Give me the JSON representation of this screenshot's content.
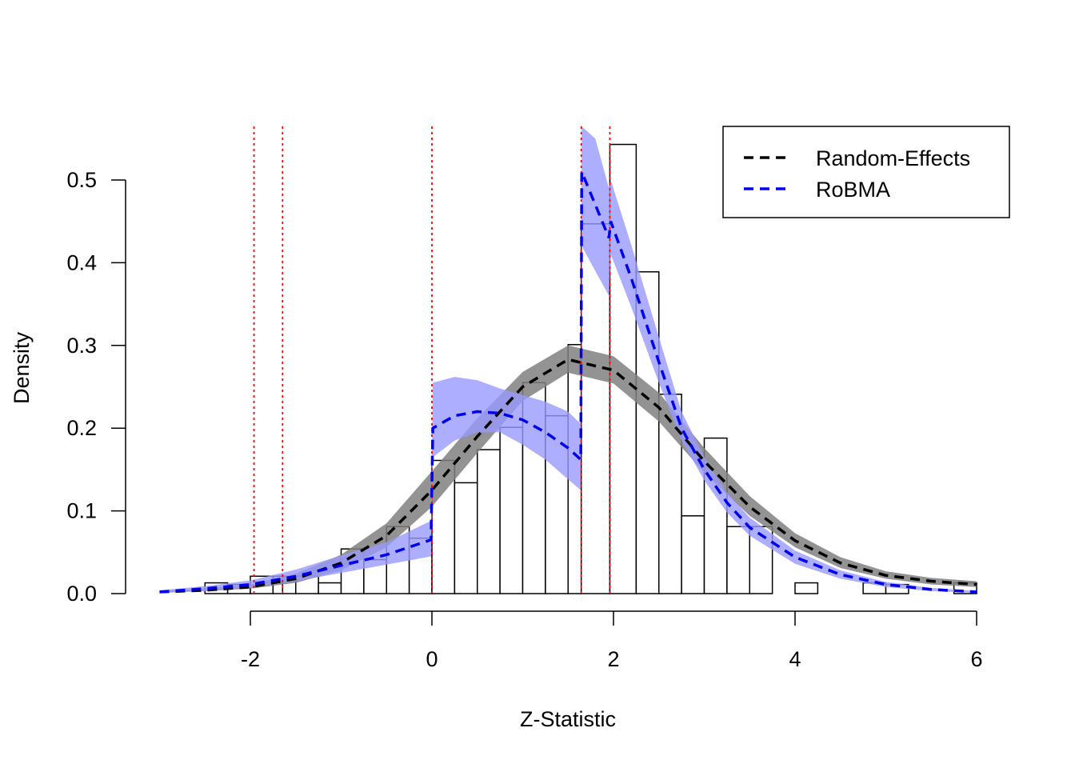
{
  "chart_data": {
    "type": "histogram",
    "xlabel": "Z-Statistic",
    "ylabel": "Density",
    "xlim": [
      -3,
      6
    ],
    "ylim": [
      0,
      0.55
    ],
    "x_ticks": [
      -2,
      0,
      2,
      4,
      6
    ],
    "x_tick_labels": [
      "-2",
      "0",
      "2",
      "4",
      "6"
    ],
    "y_ticks": [
      0.0,
      0.1,
      0.2,
      0.3,
      0.4,
      0.5
    ],
    "y_tick_labels": [
      "0.0",
      "0.1",
      "0.2",
      "0.3",
      "0.4",
      "0.5"
    ],
    "grid": false,
    "legend_position": "top-right",
    "histogram": {
      "bins": [
        {
          "x0": -2.5,
          "x1": -2.25,
          "density": 0.013
        },
        {
          "x0": -2.25,
          "x1": -2.0,
          "density": 0.011
        },
        {
          "x0": -2.0,
          "x1": -1.75,
          "density": 0.021
        },
        {
          "x0": -1.75,
          "x1": -1.645,
          "density": 0.021
        },
        {
          "x0": -1.645,
          "x1": -1.5,
          "density": 0.021
        },
        {
          "x0": -1.5,
          "x1": -1.25,
          "density": 0.021
        },
        {
          "x0": -1.25,
          "x1": -1.0,
          "density": 0.013
        },
        {
          "x0": -1.0,
          "x1": -0.75,
          "density": 0.054
        },
        {
          "x0": -0.75,
          "x1": -0.5,
          "density": 0.041
        },
        {
          "x0": -0.5,
          "x1": -0.25,
          "density": 0.081
        },
        {
          "x0": -0.25,
          "x1": 0.0,
          "density": 0.067
        },
        {
          "x0": 0.0,
          "x1": 0.25,
          "density": 0.161
        },
        {
          "x0": 0.25,
          "x1": 0.5,
          "density": 0.134
        },
        {
          "x0": 0.5,
          "x1": 0.75,
          "density": 0.174
        },
        {
          "x0": 0.75,
          "x1": 1.0,
          "density": 0.201
        },
        {
          "x0": 1.0,
          "x1": 1.25,
          "density": 0.255
        },
        {
          "x0": 1.25,
          "x1": 1.5,
          "density": 0.215
        },
        {
          "x0": 1.5,
          "x1": 1.645,
          "density": 0.301
        },
        {
          "x0": 1.645,
          "x1": 1.96,
          "density": 0.447
        },
        {
          "x0": 1.96,
          "x1": 2.25,
          "density": 0.543
        },
        {
          "x0": 2.25,
          "x1": 2.5,
          "density": 0.389
        },
        {
          "x0": 2.5,
          "x1": 2.75,
          "density": 0.241
        },
        {
          "x0": 2.75,
          "x1": 3.0,
          "density": 0.094
        },
        {
          "x0": 3.0,
          "x1": 3.25,
          "density": 0.188
        },
        {
          "x0": 3.25,
          "x1": 3.5,
          "density": 0.081
        },
        {
          "x0": 3.5,
          "x1": 3.75,
          "density": 0.081
        },
        {
          "x0": 3.75,
          "x1": 4.0,
          "density": 0.0
        },
        {
          "x0": 4.0,
          "x1": 4.25,
          "density": 0.013
        },
        {
          "x0": 4.25,
          "x1": 4.5,
          "density": 0.0
        },
        {
          "x0": 4.5,
          "x1": 4.75,
          "density": 0.0
        },
        {
          "x0": 4.75,
          "x1": 5.0,
          "density": 0.013
        },
        {
          "x0": 5.0,
          "x1": 5.25,
          "density": 0.011
        },
        {
          "x0": 5.25,
          "x1": 5.5,
          "density": 0.0
        },
        {
          "x0": 5.5,
          "x1": 5.75,
          "density": 0.0
        },
        {
          "x0": 5.75,
          "x1": 6.0,
          "density": 0.013
        }
      ]
    },
    "reference_lines": {
      "x": [
        -1.96,
        -1.645,
        0,
        1.645,
        1.96
      ],
      "color": "#ff0000",
      "style": "dotted"
    },
    "series": [
      {
        "name": "Random-Effects",
        "color": "#000000",
        "band_color": "#808080",
        "style": "dashed",
        "x": [
          -3.0,
          -2.5,
          -2.0,
          -1.5,
          -1.0,
          -0.5,
          0.0,
          0.5,
          1.0,
          1.5,
          2.0,
          2.5,
          3.0,
          3.5,
          4.0,
          4.5,
          5.0,
          5.5,
          6.0
        ],
        "y": [
          0.002,
          0.004,
          0.008,
          0.018,
          0.037,
          0.07,
          0.125,
          0.19,
          0.25,
          0.283,
          0.27,
          0.225,
          0.16,
          0.105,
          0.064,
          0.037,
          0.022,
          0.015,
          0.011
        ],
        "lower": [
          0.001,
          0.003,
          0.006,
          0.013,
          0.028,
          0.056,
          0.105,
          0.17,
          0.233,
          0.267,
          0.254,
          0.208,
          0.146,
          0.094,
          0.056,
          0.031,
          0.018,
          0.011,
          0.008
        ],
        "upper": [
          0.003,
          0.006,
          0.011,
          0.024,
          0.047,
          0.085,
          0.148,
          0.212,
          0.268,
          0.3,
          0.287,
          0.243,
          0.176,
          0.118,
          0.073,
          0.044,
          0.027,
          0.019,
          0.015
        ]
      },
      {
        "name": "RoBMA",
        "color": "#0000ee",
        "band_color": "#9a9aff",
        "style": "dashed",
        "x": [
          -3.0,
          -2.5,
          -2.0,
          -1.5,
          -1.0,
          -0.5,
          -0.01,
          0.01,
          0.25,
          0.5,
          0.75,
          1.0,
          1.25,
          1.5,
          1.64,
          1.65,
          1.8,
          1.95,
          1.97,
          2.2,
          2.5,
          2.75,
          3.0,
          3.25,
          3.5,
          4.0,
          4.5,
          5.0,
          5.5,
          6.0
        ],
        "y": [
          0.002,
          0.006,
          0.011,
          0.021,
          0.034,
          0.047,
          0.065,
          0.2,
          0.215,
          0.22,
          0.218,
          0.21,
          0.195,
          0.176,
          0.162,
          0.51,
          0.47,
          0.43,
          0.45,
          0.38,
          0.28,
          0.2,
          0.15,
          0.11,
          0.08,
          0.044,
          0.023,
          0.011,
          0.005,
          0.002
        ],
        "lower": [
          0.001,
          0.003,
          0.007,
          0.015,
          0.025,
          0.035,
          0.045,
          0.165,
          0.185,
          0.195,
          0.195,
          0.18,
          0.162,
          0.138,
          0.125,
          0.42,
          0.39,
          0.36,
          0.41,
          0.345,
          0.255,
          0.185,
          0.137,
          0.098,
          0.07,
          0.036,
          0.018,
          0.008,
          0.003,
          0.001
        ],
        "upper": [
          0.004,
          0.009,
          0.016,
          0.029,
          0.046,
          0.062,
          0.088,
          0.255,
          0.262,
          0.258,
          0.248,
          0.24,
          0.232,
          0.22,
          0.205,
          0.62,
          0.55,
          0.49,
          0.5,
          0.42,
          0.31,
          0.22,
          0.165,
          0.122,
          0.092,
          0.052,
          0.028,
          0.014,
          0.007,
          0.003
        ]
      }
    ]
  }
}
